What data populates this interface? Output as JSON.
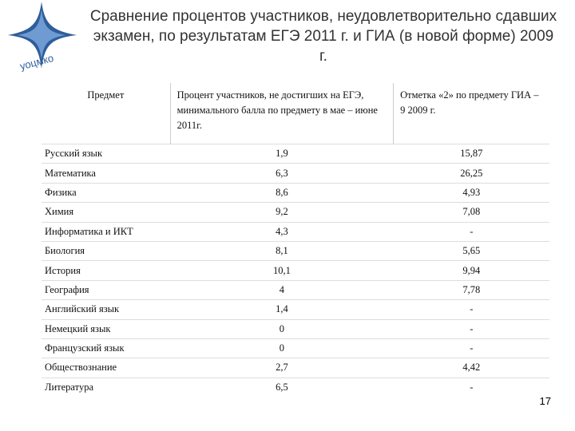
{
  "logo": "уоцмко",
  "title": "Сравнение процентов участников, неудовлетворительно сдавших экзамен, по результатам ЕГЭ 2011 г. и ГИА (в новой форме) 2009 г.",
  "table": {
    "header": [
      "Предмет",
      "Процент участников, не достигших на ЕГЭ, минимального балла по предмету в мае – июне 2011г.",
      "Отметка «2» по предмету ГИА – 9 2009 г."
    ],
    "rows": [
      [
        "Русский язык",
        "1,9",
        "15,87"
      ],
      [
        "Математика",
        "6,3",
        "26,25"
      ],
      [
        "Физика",
        "8,6",
        "4,93"
      ],
      [
        "Химия",
        "9,2",
        "7,08"
      ],
      [
        "Информатика и ИКТ",
        "4,3",
        "-"
      ],
      [
        "Биология",
        "8,1",
        "5,65"
      ],
      [
        "История",
        "10,1",
        "9,94"
      ],
      [
        "География",
        "4",
        "7,78"
      ],
      [
        "Английский язык",
        "1,4",
        "-"
      ],
      [
        "Немецкий язык",
        "0",
        "-"
      ],
      [
        "Французский язык",
        "0",
        "-"
      ],
      [
        "Обществознание",
        "2,7",
        "4,42"
      ],
      [
        "Литература",
        "6,5",
        "-"
      ]
    ]
  },
  "page_number": "17"
}
